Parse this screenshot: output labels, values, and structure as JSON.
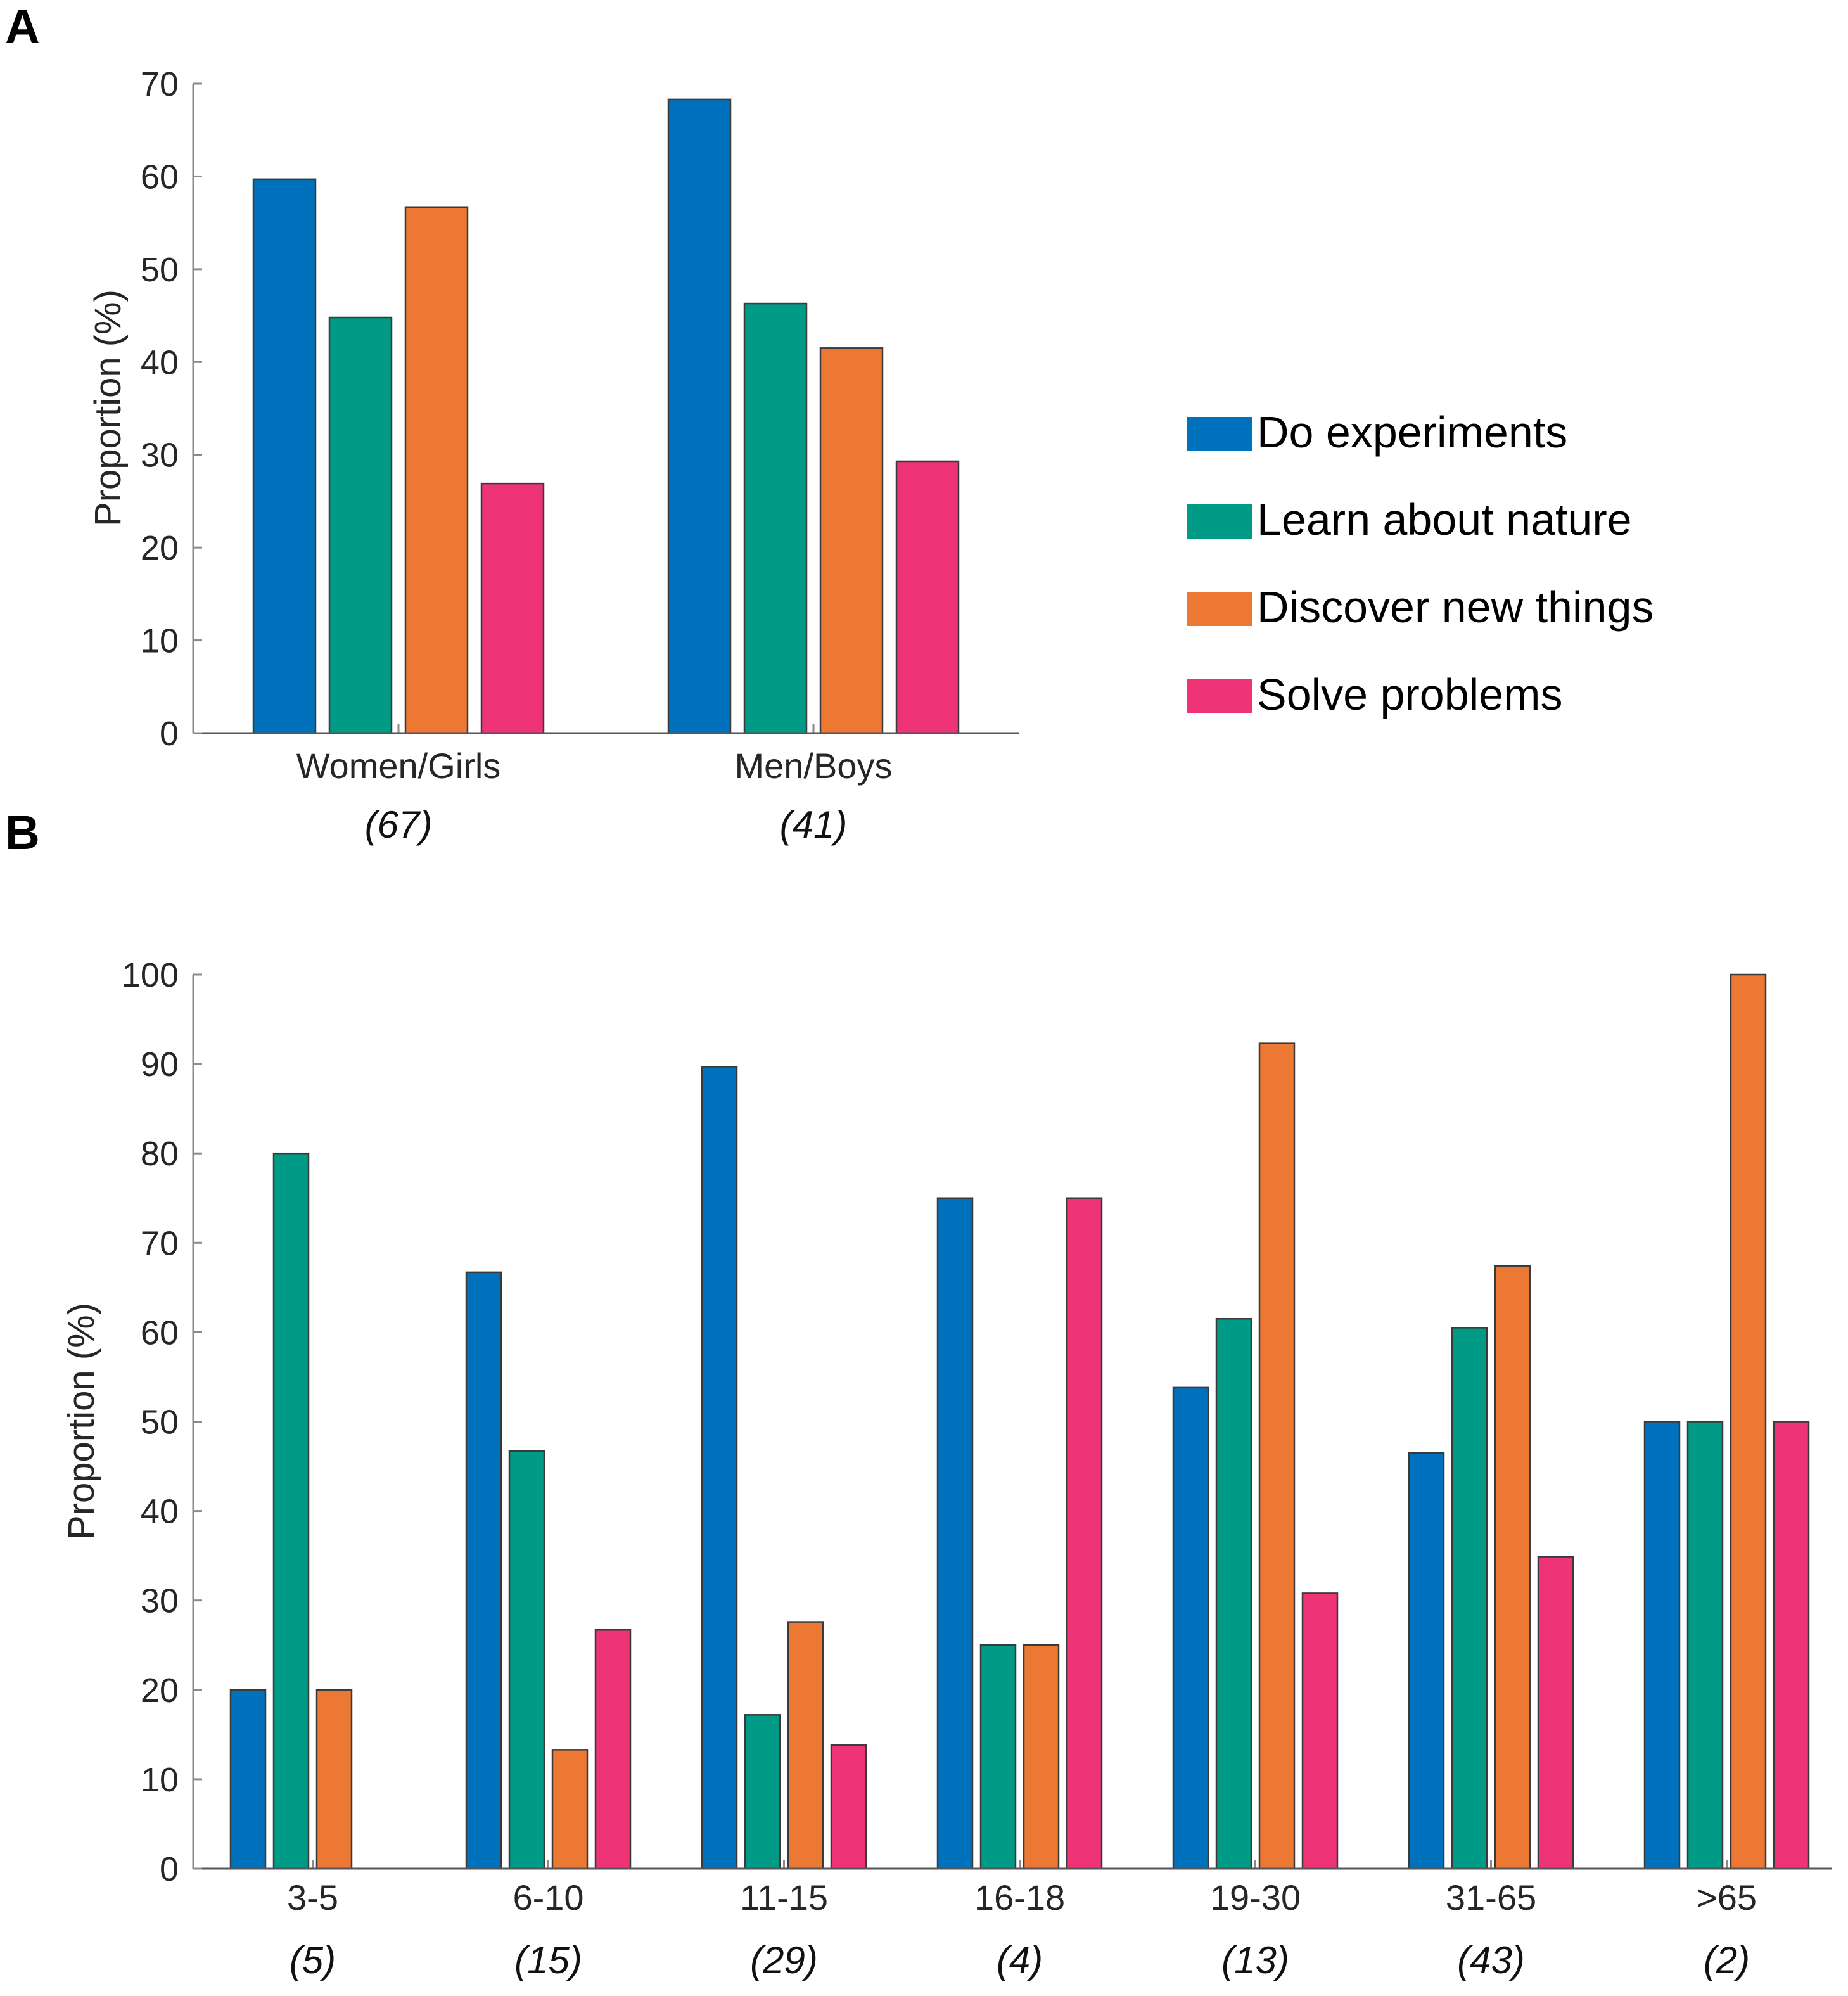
{
  "chart_data": [
    {
      "panel": "A",
      "type": "bar",
      "title": "",
      "xlabel": "",
      "ylabel": "Proportion (%)",
      "ylim": [
        0,
        70
      ],
      "yticks": [
        0,
        10,
        20,
        30,
        40,
        50,
        60,
        70
      ],
      "grid": false,
      "categories": [
        "Women/Girls",
        "Men/Boys"
      ],
      "category_counts": [
        "(67)",
        "(41)"
      ],
      "legend_position": "right",
      "series": [
        {
          "name": "Do experiments",
          "color": "#0072BD",
          "values": [
            59.7,
            68.3
          ]
        },
        {
          "name": "Learn about nature",
          "color": "#009B86",
          "values": [
            44.8,
            46.3
          ]
        },
        {
          "name": "Discover new things",
          "color": "#ED7834",
          "values": [
            56.7,
            41.5
          ]
        },
        {
          "name": "Solve problems",
          "color": "#EE3377",
          "values": [
            26.9,
            29.3
          ]
        }
      ]
    },
    {
      "panel": "B",
      "type": "bar",
      "title": "",
      "xlabel": "",
      "ylabel": "Proportion (%)",
      "ylim": [
        0,
        100
      ],
      "yticks": [
        0,
        10,
        20,
        30,
        40,
        50,
        60,
        70,
        80,
        90,
        100
      ],
      "grid": false,
      "categories": [
        "3-5",
        "6-10",
        "11-15",
        "16-18",
        "19-30",
        "31-65",
        ">65"
      ],
      "category_counts": [
        "(5)",
        "(15)",
        "(29)",
        "(4)",
        "(13)",
        "(43)",
        "(2)"
      ],
      "series": [
        {
          "name": "Do experiments",
          "color": "#0072BD",
          "values": [
            20,
            66.7,
            89.7,
            75,
            53.8,
            46.5,
            50
          ]
        },
        {
          "name": "Learn about nature",
          "color": "#009B86",
          "values": [
            80,
            46.7,
            17.2,
            25,
            61.5,
            60.5,
            50
          ]
        },
        {
          "name": "Discover new things",
          "color": "#ED7834",
          "values": [
            20,
            13.3,
            27.6,
            25,
            92.3,
            67.4,
            100
          ]
        },
        {
          "name": "Solve problems",
          "color": "#EE3377",
          "values": [
            0,
            26.7,
            13.8,
            75,
            30.8,
            34.9,
            50
          ]
        }
      ]
    }
  ],
  "legend": {
    "items": [
      {
        "label": "Do experiments",
        "color": "#0072BD"
      },
      {
        "label": "Learn about nature",
        "color": "#009B86"
      },
      {
        "label": "Discover new things",
        "color": "#ED7834"
      },
      {
        "label": "Solve problems",
        "color": "#EE3377"
      }
    ]
  },
  "panels": {
    "a_label": "A",
    "b_label": "B"
  }
}
